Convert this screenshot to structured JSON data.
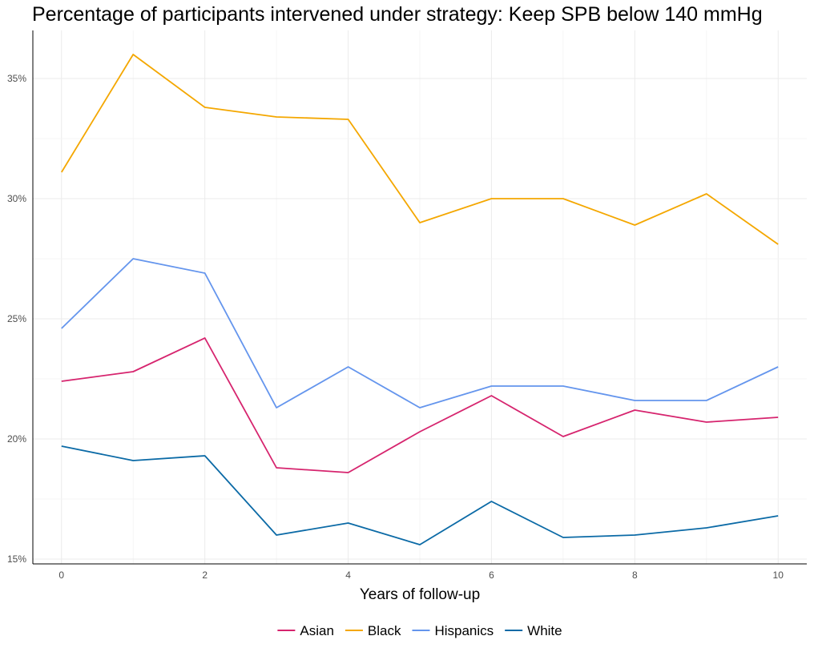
{
  "chart_data": {
    "type": "line",
    "title": "Percentage of participants intervened under strategy: Keep SPB below 140 mmHg",
    "xlabel": "Years of follow-up",
    "ylabel": "",
    "xlim": [
      -0.4,
      10.4
    ],
    "ylim": [
      14.8,
      37.0
    ],
    "x_ticks": [
      0,
      2,
      4,
      6,
      8,
      10
    ],
    "y_ticks": [
      15,
      20,
      25,
      30,
      35
    ],
    "y_tick_labels": [
      "15%",
      "20%",
      "25%",
      "30%",
      "35%"
    ],
    "grid": true,
    "legend_position": "bottom",
    "x": [
      0,
      1,
      2,
      3,
      4,
      5,
      6,
      7,
      8,
      9,
      10
    ],
    "series": [
      {
        "name": "Asian",
        "color": "#d6246e",
        "values": [
          22.4,
          22.8,
          24.2,
          18.8,
          18.6,
          20.3,
          21.8,
          20.1,
          21.2,
          20.7,
          20.9
        ]
      },
      {
        "name": "Black",
        "color": "#f4a700",
        "values": [
          31.1,
          36.0,
          33.8,
          33.4,
          33.3,
          29.0,
          30.0,
          30.0,
          28.9,
          30.2,
          28.1
        ]
      },
      {
        "name": "Hispanics",
        "color": "#6495ed",
        "values": [
          24.6,
          27.5,
          26.9,
          21.3,
          23.0,
          21.3,
          22.2,
          22.2,
          21.6,
          21.6,
          23.0
        ]
      },
      {
        "name": "White",
        "color": "#0b6aa6",
        "values": [
          19.7,
          19.1,
          19.3,
          16.0,
          16.5,
          15.6,
          17.4,
          15.9,
          16.0,
          16.3,
          16.8
        ]
      }
    ]
  }
}
